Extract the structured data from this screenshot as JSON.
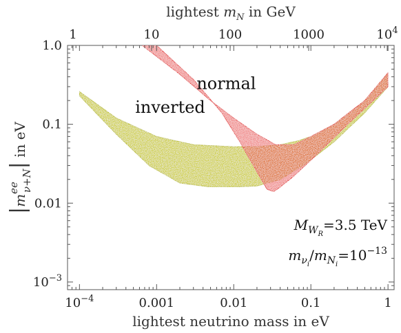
{
  "chart_data": {
    "type": "area",
    "x_scale": "log",
    "y_scale": "log",
    "xlim": [
      7e-05,
      1.2
    ],
    "ylim": [
      0.0008,
      1.0
    ],
    "top_xlim": [
      1,
      10000
    ],
    "xlabel": "lightest neutrino mass in eV",
    "top_xlabel_text": "lightest ",
    "top_xlabel_symbol": "m",
    "top_xlabel_sub": "N",
    "top_xlabel_unit": " in GeV",
    "ylabel_text": " in eV",
    "x_ticks": [
      {
        "value": 0.0001,
        "base": "10",
        "exp": "−4"
      },
      {
        "value": 0.001,
        "label": "0.001"
      },
      {
        "value": 0.01,
        "label": "0.01"
      },
      {
        "value": 0.1,
        "label": "0.1"
      },
      {
        "value": 1,
        "label": "1"
      }
    ],
    "top_ticks": [
      {
        "value": 1,
        "label": "1"
      },
      {
        "value": 10,
        "label": "10"
      },
      {
        "value": 100,
        "label": "100"
      },
      {
        "value": 1000,
        "label": "1000"
      },
      {
        "value": 10000,
        "base": "10",
        "exp": "4"
      }
    ],
    "y_ticks": [
      {
        "value": 1.0,
        "label": "1.0"
      },
      {
        "value": 0.1,
        "label": "0.1"
      },
      {
        "value": 0.01,
        "label": "0.01"
      },
      {
        "value": 0.001,
        "base": "10",
        "exp": "−3"
      }
    ],
    "series": [
      {
        "name": "inverted",
        "color": "#b5b800",
        "upper": [
          [
            0.0001,
            0.26
          ],
          [
            0.0003,
            0.12
          ],
          [
            0.001,
            0.07
          ],
          [
            0.003,
            0.055
          ],
          [
            0.01,
            0.052
          ],
          [
            0.02,
            0.052
          ],
          [
            0.04,
            0.055
          ],
          [
            0.07,
            0.062
          ],
          [
            0.1,
            0.07
          ],
          [
            0.2,
            0.1
          ],
          [
            0.5,
            0.2
          ],
          [
            1,
            0.45
          ]
        ],
        "lower": [
          [
            0.0001,
            0.23
          ],
          [
            0.0003,
            0.075
          ],
          [
            0.0008,
            0.03
          ],
          [
            0.002,
            0.018
          ],
          [
            0.005,
            0.016
          ],
          [
            0.01,
            0.016
          ],
          [
            0.02,
            0.0165
          ],
          [
            0.04,
            0.02
          ],
          [
            0.08,
            0.03
          ],
          [
            0.2,
            0.06
          ],
          [
            0.5,
            0.14
          ],
          [
            1,
            0.3
          ]
        ]
      },
      {
        "name": "normal",
        "color": "#e02020",
        "upper": [
          [
            0.00065,
            1.0
          ],
          [
            0.002,
            0.43
          ],
          [
            0.005,
            0.2
          ],
          [
            0.01,
            0.12
          ],
          [
            0.02,
            0.075
          ],
          [
            0.035,
            0.055
          ],
          [
            0.06,
            0.055
          ],
          [
            0.1,
            0.07
          ],
          [
            0.2,
            0.1
          ],
          [
            0.5,
            0.2
          ],
          [
            1,
            0.45
          ]
        ],
        "lower": [
          [
            0.001,
            1.0
          ],
          [
            0.003,
            0.37
          ],
          [
            0.007,
            0.14
          ],
          [
            0.012,
            0.06
          ],
          [
            0.02,
            0.025
          ],
          [
            0.027,
            0.015
          ],
          [
            0.033,
            0.014
          ],
          [
            0.04,
            0.016
          ],
          [
            0.06,
            0.022
          ],
          [
            0.1,
            0.035
          ],
          [
            0.3,
            0.1
          ],
          [
            1,
            0.3
          ]
        ]
      }
    ],
    "band_labels": {
      "inverted": {
        "text": "inverted",
        "x": 0.0015,
        "y": 0.14
      },
      "normal": {
        "text": "normal",
        "x": 0.008,
        "y": 0.28
      }
    },
    "annotations": [
      {
        "id": "mwr",
        "symbol": "M",
        "sub": "W",
        "subsub": "R",
        "rest": "=3.5 TeV"
      },
      {
        "id": "ratio",
        "symbol1": "m",
        "sub1": "ν",
        "subsub1": "i",
        "mid": "/",
        "symbol2": "m",
        "sub2": "N",
        "subsub2": "i",
        "rest": "=10",
        "exp": "−13"
      }
    ]
  }
}
